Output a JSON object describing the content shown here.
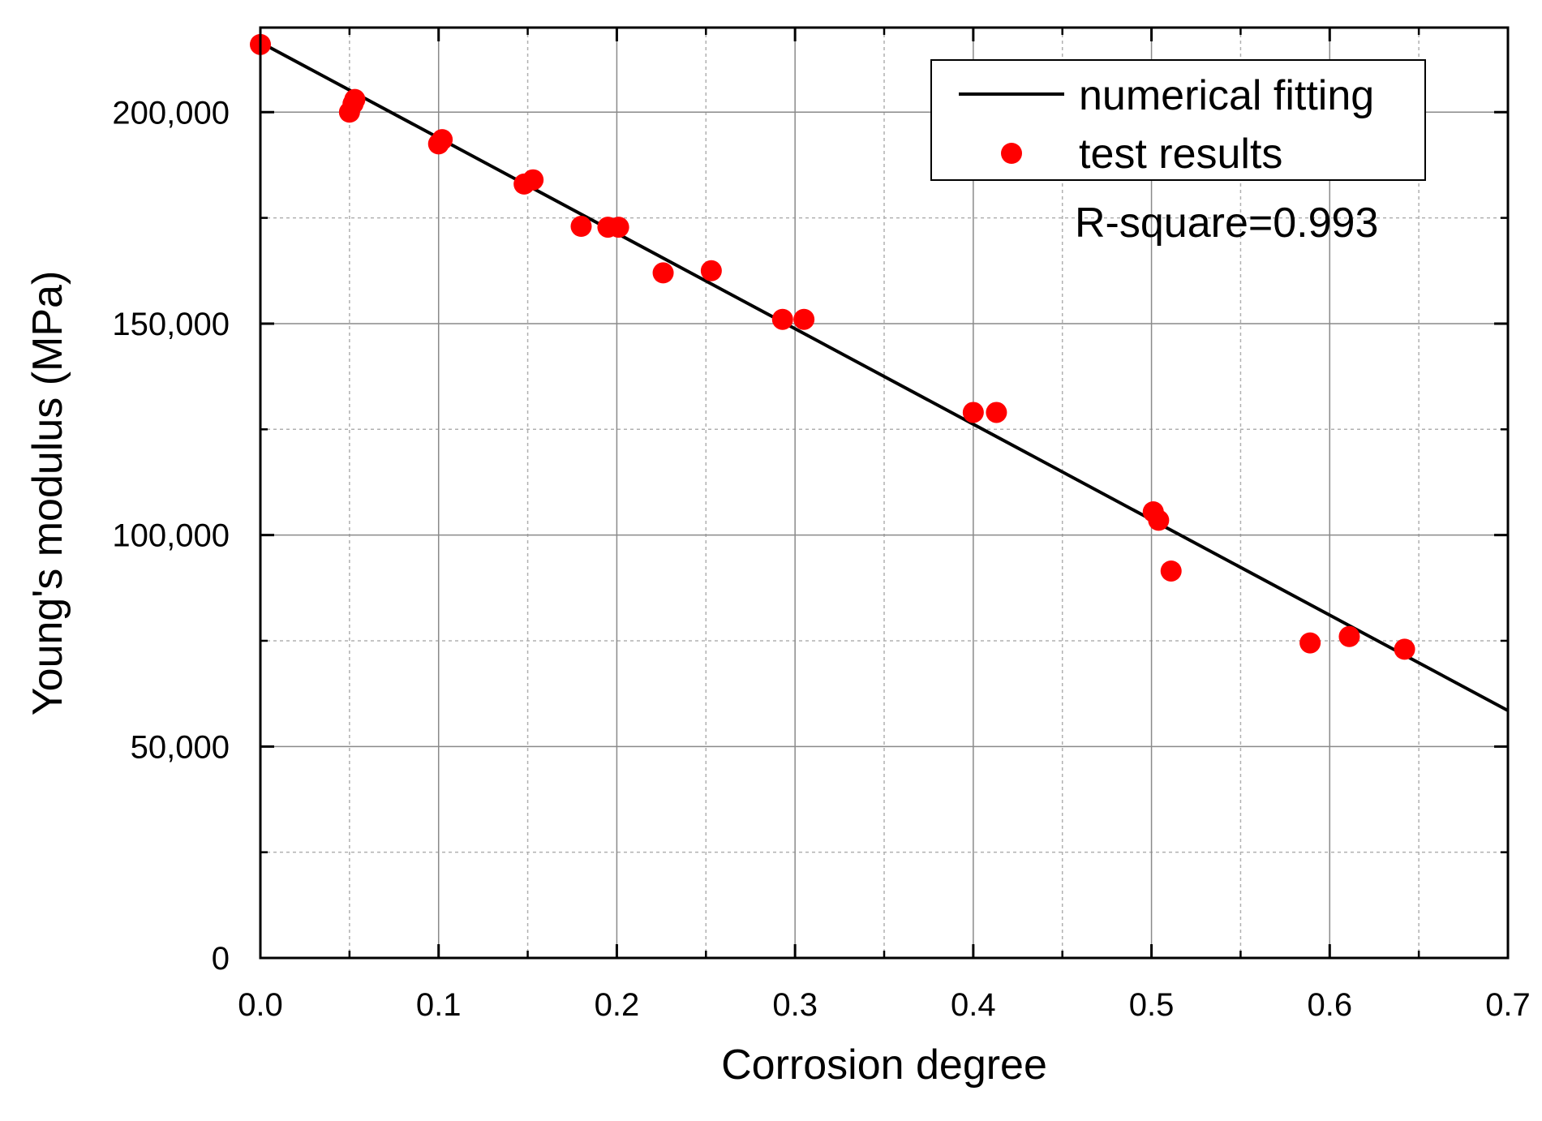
{
  "chart_data": {
    "type": "scatter",
    "title": "",
    "xlabel": "Corrosion degree",
    "ylabel": "Young's modulus (MPa)",
    "xlim": [
      0,
      0.7
    ],
    "ylim": [
      0,
      220000
    ],
    "x_ticks": [
      0.0,
      0.1,
      0.2,
      0.3,
      0.4,
      0.5,
      0.6,
      0.7
    ],
    "x_tick_labels": [
      "0.0",
      "0.1",
      "0.2",
      "0.3",
      "0.4",
      "0.5",
      "0.6",
      "0.7"
    ],
    "y_ticks": [
      0,
      50000,
      100000,
      150000,
      200000
    ],
    "y_tick_labels": [
      "0",
      "50,000",
      "100,000",
      "150,000",
      "200,000"
    ],
    "grid": true,
    "legend_position": "top-right",
    "series": [
      {
        "name": "numerical fitting",
        "kind": "line",
        "color": "#000000",
        "x": [
          0,
          0.7
        ],
        "y": [
          216500,
          58500
        ]
      },
      {
        "name": "test results",
        "kind": "scatter",
        "color": "#ff0000",
        "x": [
          0.0,
          0.05,
          0.052,
          0.053,
          0.1,
          0.102,
          0.148,
          0.153,
          0.18,
          0.195,
          0.201,
          0.226,
          0.253,
          0.293,
          0.305,
          0.4,
          0.413,
          0.501,
          0.504,
          0.511,
          0.589,
          0.611,
          0.642
        ],
        "y": [
          216000,
          200000,
          202000,
          203000,
          192500,
          193500,
          183000,
          184000,
          173000,
          172800,
          172800,
          162000,
          162500,
          151000,
          151000,
          129000,
          129000,
          105500,
          103500,
          91500,
          74500,
          76000,
          73000
        ]
      }
    ],
    "annotations": [
      "R-square=0.993"
    ]
  }
}
